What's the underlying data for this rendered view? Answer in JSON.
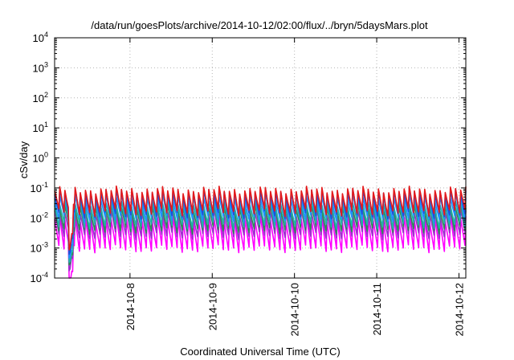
{
  "chart_data": {
    "type": "line",
    "title": "/data/run/goesPlots/archive/2014-10-12/02:00/flux/../bryn/5daysMars.plot",
    "xlabel": "Coordinated Universal Time (UTC)",
    "ylabel": "cSv/day",
    "y_scale": "log",
    "ylim": [
      0.0001,
      10000
    ],
    "xlim": [
      "2014-10-07T02:00",
      "2014-10-12T02:00"
    ],
    "x_tick_labels": [
      "2014-10-8",
      "2014-10-9",
      "2014-10-10",
      "2014-10-11",
      "2014-10-12"
    ],
    "x_tick_positions": [
      "2014-10-08T00:00",
      "2014-10-09T00:00",
      "2014-10-10T00:00",
      "2014-10-11T00:00",
      "2014-10-12T00:00"
    ],
    "y_tick_labels": [
      {
        "base": "10",
        "exp": "-4"
      },
      {
        "base": "10",
        "exp": "-3"
      },
      {
        "base": "10",
        "exp": "-2"
      },
      {
        "base": "10",
        "exp": "-1"
      },
      {
        "base": "10",
        "exp": "0"
      },
      {
        "base": "10",
        "exp": "1"
      },
      {
        "base": "10",
        "exp": "2"
      },
      {
        "base": "10",
        "exp": "3"
      },
      {
        "base": "10",
        "exp": "4"
      }
    ],
    "grid": true,
    "legend": "none",
    "pattern": {
      "description_period_hours": 1.5,
      "gap": [
        "2014-10-07T06:00",
        "2014-10-07T07:30"
      ]
    },
    "series": [
      {
        "color": "#e41a1c",
        "peak": 0.085,
        "trough": 0.011
      },
      {
        "color": "#1f4fd8",
        "peak": 0.07,
        "trough": 0.009
      },
      {
        "color": "#1e90ff",
        "peak": 0.05,
        "trough": 0.0065
      },
      {
        "color": "#20b2aa",
        "peak": 0.03,
        "trough": 0.004
      },
      {
        "color": "#2e8b57",
        "peak": 0.022,
        "trough": 0.0028
      },
      {
        "color": "#9932cc",
        "peak": 0.015,
        "trough": 0.0018
      },
      {
        "color": "#ff00ff",
        "peak": 0.009,
        "trough": 0.0006
      }
    ]
  }
}
